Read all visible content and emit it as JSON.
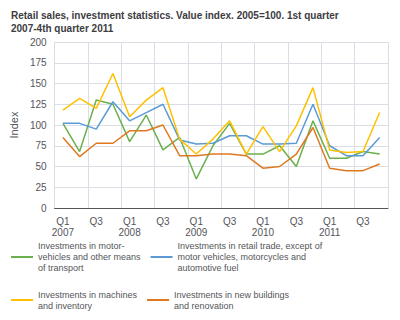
{
  "chart_data": {
    "type": "line",
    "title": "Retail sales, investment statistics. Value index. 2005=100. 1st quarter\n2007-4th quarter 2011",
    "ylabel": "Index",
    "categories": [
      "Q1\n2007",
      null,
      "Q3",
      null,
      "Q1\n2008",
      null,
      "Q3",
      null,
      "Q1\n2009",
      null,
      "Q3",
      null,
      "Q1\n2010",
      null,
      "Q3",
      null,
      "Q1\n2011",
      null,
      "Q3",
      null
    ],
    "series": [
      {
        "name": "Investments in motor-\nvehicles and other means\nof transport",
        "color": "#6ab04c",
        "values": [
          102,
          68,
          130,
          125,
          80,
          112,
          70,
          85,
          35,
          75,
          102,
          65,
          65,
          75,
          50,
          105,
          60,
          60,
          68,
          65
        ]
      },
      {
        "name": "Investments in retail trade, except of\nmotor vehicles, motorcycles and\nautomotive fuel",
        "color": "#5b9bd5",
        "values": [
          102,
          102,
          95,
          128,
          105,
          115,
          125,
          82,
          77,
          78,
          87,
          87,
          77,
          77,
          78,
          125,
          75,
          63,
          63,
          85
        ]
      },
      {
        "name": "Investments in machines\nand inventory",
        "color": "#ffc000",
        "values": [
          118,
          132,
          120,
          162,
          110,
          130,
          145,
          83,
          65,
          83,
          105,
          65,
          98,
          68,
          99,
          145,
          70,
          67,
          68,
          115
        ]
      },
      {
        "name": "Investments in new buildings\nand renovation",
        "color": "#e07820",
        "values": [
          85,
          62,
          78,
          78,
          93,
          93,
          100,
          63,
          63,
          65,
          65,
          63,
          48,
          50,
          65,
          97,
          48,
          45,
          45,
          53
        ]
      }
    ],
    "ylim": [
      0,
      200
    ],
    "yticks": [
      0,
      25,
      50,
      75,
      100,
      125,
      150,
      175,
      200
    ],
    "grid": true,
    "legend": "bottom"
  }
}
